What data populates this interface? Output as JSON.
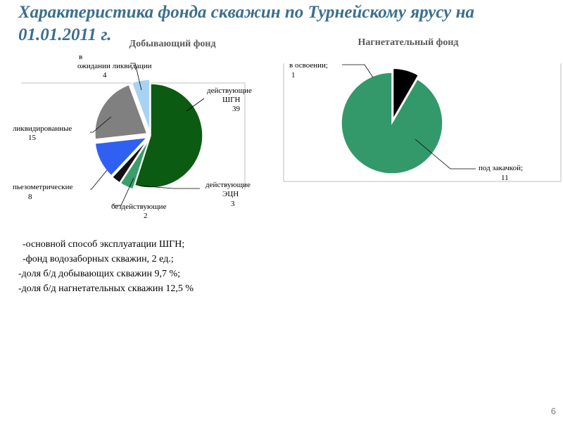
{
  "page": {
    "title": "Характеристика фонда скважин по Турнейскому ярусу на 01.01.2011 г.",
    "notes": [
      "-основной способ эксплуатации ШГН;",
      "-фонд водозаборных скважин, 2 ед.;",
      "-доля б/д добывающих скважин 9,7 %;",
      "-доля б/д нагнетательных скважин 12,5 %"
    ],
    "page_number": "6"
  },
  "chart_data": [
    {
      "type": "pie",
      "title": "Добывающий фонд",
      "slices": [
        {
          "name": "действующие ШГН",
          "value": 39,
          "color": "#0b5b12",
          "exploded": false
        },
        {
          "name": "действующие ЭЦН",
          "value": 3,
          "color": "#3a9e6a",
          "exploded": true
        },
        {
          "name": "бездействующие",
          "value": 2,
          "color": "#111111",
          "exploded": true
        },
        {
          "name": "пьезометрические",
          "value": 8,
          "color": "#2f60f2",
          "exploded": true
        },
        {
          "name": "ликвидированные",
          "value": 15,
          "color": "#808080",
          "exploded": true
        },
        {
          "name": "в ожидании ликвидации",
          "value": 4,
          "color": "#a8d2f2",
          "exploded": true
        }
      ]
    },
    {
      "type": "pie",
      "title": "Нагнетательный фонд",
      "slices": [
        {
          "name": "в освоении;",
          "value": 1,
          "color": "#000000",
          "exploded": true
        },
        {
          "name": "под закачкой;",
          "value": 11,
          "color": "#33996a",
          "exploded": false
        }
      ]
    }
  ]
}
